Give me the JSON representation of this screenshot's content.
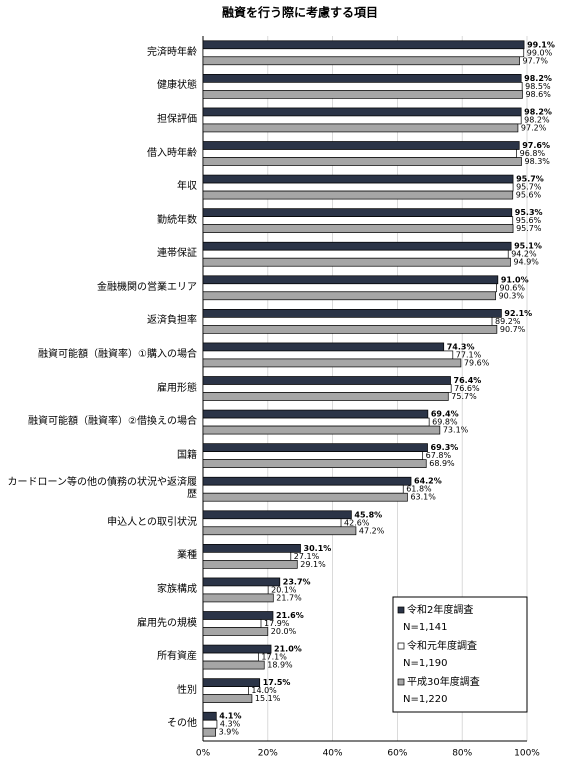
{
  "chart_data": {
    "type": "hbar",
    "title": "融資を行う際に考慮する項目",
    "categories": [
      "完済時年齢",
      "健康状態",
      "担保評価",
      "借入時年齢",
      "年収",
      "勤続年数",
      "連帯保証",
      "金融機関の営業エリア",
      "返済負担率",
      "融資可能額（融資率）①購入の場合",
      "雇用形態",
      "融資可能額（融資率）②借換えの場合",
      "国籍",
      "カードローン等の他の債務の状況や返済履歴",
      "申込人との取引状況",
      "業種",
      "家族構成",
      "雇用先の規模",
      "所有資産",
      "性別",
      "その他"
    ],
    "series": [
      {
        "name": "令和2年度調査",
        "n": "N=1,141",
        "color": "#2b3447",
        "values": [
          99.1,
          98.2,
          98.2,
          97.6,
          95.7,
          95.3,
          95.1,
          91.0,
          92.1,
          74.3,
          76.4,
          69.4,
          69.3,
          64.2,
          45.8,
          30.1,
          23.7,
          21.6,
          21.0,
          17.5,
          4.1
        ],
        "value_labels": [
          "99.1%",
          "98.2%",
          "98.2%",
          "97.6%",
          "95.7%",
          "95.3%",
          "95.1%",
          "91.0%",
          "92.1%",
          "74.3%",
          "76.4%",
          "69.4%",
          "69.3%",
          "64.2%",
          "45.8%",
          "30.1%",
          "23.7%",
          "21.6%",
          "21.0%",
          "17.5%",
          "4.1%"
        ]
      },
      {
        "name": "令和元年度調査",
        "n": "N=1,190",
        "color": "#ffffff",
        "values": [
          99.0,
          98.5,
          98.2,
          96.8,
          95.7,
          95.6,
          94.2,
          90.6,
          89.2,
          77.1,
          76.6,
          69.8,
          67.8,
          61.8,
          42.6,
          27.1,
          20.1,
          17.9,
          17.1,
          14.0,
          4.3
        ],
        "value_labels": [
          "99.0%",
          "98.5%",
          "98.2%",
          "96.8%",
          "95.7%",
          "95.6%",
          "94.2%",
          "90.6%",
          "89.2%",
          "77.1%",
          "76.6%",
          "69.8%",
          "67.8%",
          "61.8%",
          "42.6%",
          "27.1%",
          "20.1%",
          "17.9%",
          "17.1%",
          "14.0%",
          "4.3%"
        ]
      },
      {
        "name": "平成30年度調査",
        "n": "N=1,220",
        "color": "#a6a6a6",
        "values": [
          97.7,
          98.6,
          97.2,
          98.3,
          95.6,
          95.7,
          94.9,
          90.3,
          90.7,
          79.6,
          75.7,
          73.1,
          68.9,
          63.1,
          47.2,
          29.1,
          21.7,
          20.0,
          18.9,
          15.1,
          3.9
        ],
        "value_labels": [
          "97.7%",
          "98.6%",
          "97.2%",
          "98.3%",
          "95.6%",
          "95.7%",
          "94.9%",
          "90.3%",
          "90.7%",
          "79.6%",
          "75.7%",
          "73.1%",
          "68.9%",
          "63.1%",
          "47.2%",
          "29.1%",
          "21.7%",
          "20.0%",
          "18.9%",
          "15.1%",
          "3.9%"
        ]
      }
    ],
    "xlim": [
      0,
      100
    ],
    "xticks": [
      {
        "value": 0,
        "label": "0%"
      },
      {
        "value": 20,
        "label": "20%"
      },
      {
        "value": 40,
        "label": "40%"
      },
      {
        "value": 60,
        "label": "60%"
      },
      {
        "value": 80,
        "label": "80%"
      },
      {
        "value": 100,
        "label": "100%"
      }
    ],
    "grid": true,
    "legend": "bottom-right"
  }
}
